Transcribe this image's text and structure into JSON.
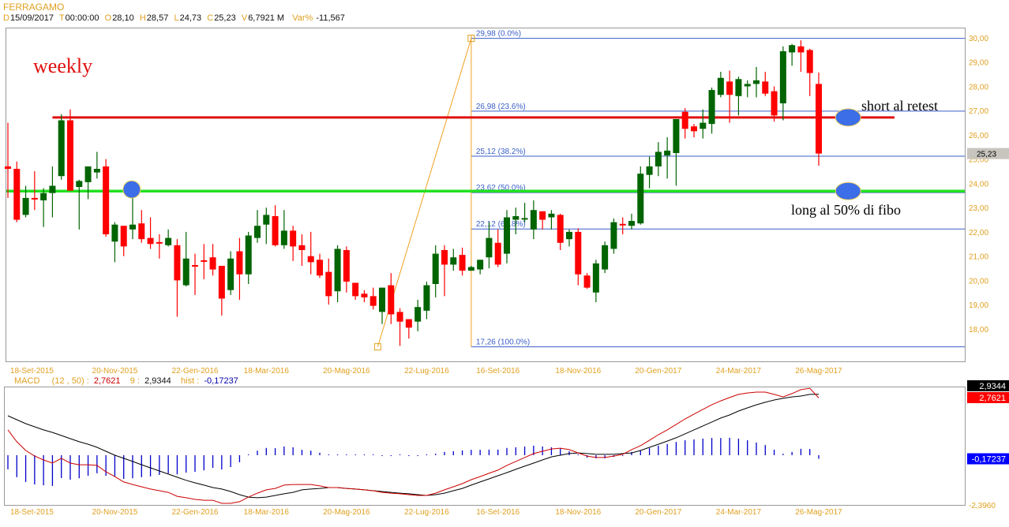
{
  "header": {
    "title": "FERRAGAMO",
    "fields": [
      {
        "label": "D",
        "value": "15/09/2017"
      },
      {
        "label": "T",
        "value": "00:00:00"
      },
      {
        "label": "O",
        "value": "28,10"
      },
      {
        "label": "H",
        "value": "28,57"
      },
      {
        "label": "L",
        "value": "24,73"
      },
      {
        "label": "C",
        "value": "25,23"
      },
      {
        "label": "V",
        "value": "6,7921 M"
      },
      {
        "label": "Var%",
        "value": "-11,567"
      }
    ]
  },
  "annotations": {
    "weekly": "weekly",
    "short": "short al retest",
    "long": "long al 50% di fibo"
  },
  "colors": {
    "up": "#006400",
    "down": "#ff0000",
    "axis": "#e0a020",
    "fib": "#3a5fc8",
    "resistance": "#e01010",
    "support": "#22e022",
    "marker": "#3c6ee8"
  },
  "chart_data": [
    {
      "type": "candlestick",
      "title": "FERRAGAMO weekly",
      "ylim": [
        17.0,
        30.4
      ],
      "yticks": [
        "30,00",
        "29,00",
        "28,00",
        "27,00",
        "26,00",
        "25,00",
        "24,00",
        "23,00",
        "22,00",
        "21,00",
        "20,00",
        "19,00",
        "18,00"
      ],
      "ytick_values": [
        30,
        29,
        28,
        27,
        26,
        25,
        24,
        23,
        22,
        21,
        20,
        19,
        18
      ],
      "last_price_label": "25,23",
      "last_price": 25.23,
      "xticks": [
        {
          "label": "18-Set-2015",
          "index": 2.7
        },
        {
          "label": "20-Nov-2015",
          "index": 12
        },
        {
          "label": "22-Gen-2016",
          "index": 21
        },
        {
          "label": "18-Mar-2016",
          "index": 29
        },
        {
          "label": "20-Mag-2016",
          "index": 38
        },
        {
          "label": "22-Lug-2016",
          "index": 47
        },
        {
          "label": "16-Set-2016",
          "index": 55
        },
        {
          "label": "18-Nov-2016",
          "index": 64
        },
        {
          "label": "20-Gen-2017",
          "index": 73
        },
        {
          "label": "24-Mar-2017",
          "index": 82
        },
        {
          "label": "26-Mag-2017",
          "index": 91
        }
      ],
      "ohlc": [
        [
          24.7,
          26.5,
          23.4,
          24.6
        ],
        [
          24.6,
          24.9,
          22.4,
          22.5
        ],
        [
          22.7,
          23.9,
          22.6,
          23.4
        ],
        [
          23.4,
          24.5,
          22.9,
          23.35
        ],
        [
          23.3,
          23.8,
          22.2,
          23.6
        ],
        [
          23.6,
          24.7,
          22.6,
          23.9
        ],
        [
          24.3,
          26.85,
          24.15,
          26.6
        ],
        [
          26.6,
          27.05,
          23.7,
          23.7
        ],
        [
          23.85,
          24.15,
          22.1,
          24.1
        ],
        [
          24.05,
          24.7,
          23.35,
          24.7
        ],
        [
          24.45,
          25.3,
          24.2,
          24.6
        ],
        [
          24.7,
          25.0,
          21.8,
          21.9
        ],
        [
          21.6,
          22.4,
          20.75,
          22.3
        ],
        [
          22.25,
          22.25,
          21.0,
          21.4
        ],
        [
          22.1,
          23.8,
          21.7,
          22.3
        ],
        [
          22.35,
          22.9,
          21.55,
          21.7
        ],
        [
          21.75,
          22.6,
          21.3,
          21.5
        ],
        [
          21.58,
          21.9,
          20.9,
          21.55
        ],
        [
          21.45,
          22.1,
          21.4,
          21.75
        ],
        [
          21.45,
          21.7,
          18.5,
          20.0
        ],
        [
          19.8,
          22.0,
          19.75,
          20.9
        ],
        [
          20.63,
          21.1,
          19.4,
          20.6
        ],
        [
          20.83,
          21.5,
          20.05,
          20.8
        ],
        [
          20.95,
          21.5,
          20.2,
          20.45
        ],
        [
          20.6,
          20.6,
          18.55,
          19.25
        ],
        [
          19.6,
          21.2,
          19.4,
          20.9
        ],
        [
          21.2,
          21.75,
          19.2,
          20.25
        ],
        [
          20.25,
          22.0,
          19.85,
          21.85
        ],
        [
          21.75,
          22.9,
          21.55,
          22.25
        ],
        [
          22.3,
          23.0,
          21.5,
          22.7
        ],
        [
          22.65,
          23.1,
          21.4,
          21.45
        ],
        [
          21.45,
          22.9,
          21.3,
          22.05
        ],
        [
          22.05,
          22.25,
          20.8,
          21.4
        ],
        [
          21.45,
          21.9,
          20.6,
          21.25
        ],
        [
          21.0,
          22.0,
          20.25,
          20.75
        ],
        [
          20.85,
          21.1,
          20.1,
          20.2
        ],
        [
          20.35,
          20.9,
          19.0,
          19.35
        ],
        [
          19.55,
          21.45,
          19.1,
          21.3
        ],
        [
          21.25,
          21.4,
          19.5,
          19.95
        ],
        [
          19.9,
          19.9,
          19.2,
          19.35
        ],
        [
          19.45,
          19.6,
          19.1,
          19.3
        ],
        [
          19.35,
          19.7,
          18.8,
          18.95
        ],
        [
          18.7,
          19.7,
          18.2,
          19.7
        ],
        [
          19.8,
          20.3,
          18.2,
          18.6
        ],
        [
          18.7,
          18.85,
          17.3,
          18.3
        ],
        [
          18.4,
          18.4,
          17.6,
          18.05
        ],
        [
          18.3,
          19.2,
          17.9,
          18.9
        ],
        [
          18.75,
          19.95,
          18.4,
          19.8
        ],
        [
          19.85,
          21.45,
          19.3,
          21.1
        ],
        [
          21.25,
          21.45,
          19.35,
          20.65
        ],
        [
          20.65,
          21.3,
          20.4,
          20.95
        ],
        [
          21.05,
          21.35,
          20.2,
          20.4
        ],
        [
          20.4,
          20.6,
          20.4,
          20.55
        ],
        [
          20.45,
          20.85,
          20.25,
          20.85
        ],
        [
          20.95,
          22.4,
          20.5,
          21.75
        ],
        [
          21.55,
          22.1,
          20.55,
          20.65
        ],
        [
          21.1,
          22.9,
          20.7,
          22.6
        ],
        [
          22.5,
          23.0,
          21.9,
          22.65
        ],
        [
          22.53,
          23.2,
          22.4,
          22.57
        ],
        [
          22.1,
          23.3,
          21.7,
          22.9
        ],
        [
          22.85,
          22.85,
          22.1,
          22.5
        ],
        [
          22.6,
          22.9,
          22.1,
          22.75
        ],
        [
          22.7,
          22.75,
          21.25,
          21.55
        ],
        [
          21.7,
          22.1,
          21.4,
          22.0
        ],
        [
          22.0,
          22.15,
          19.8,
          20.25
        ],
        [
          20.2,
          20.3,
          19.65,
          19.7
        ],
        [
          19.5,
          20.85,
          19.1,
          20.7
        ],
        [
          20.45,
          21.6,
          20.3,
          21.45
        ],
        [
          21.3,
          22.55,
          21.1,
          22.4
        ],
        [
          22.33,
          22.6,
          21.9,
          22.3
        ],
        [
          22.25,
          22.75,
          22.1,
          22.45
        ],
        [
          22.35,
          24.7,
          22.3,
          24.4
        ],
        [
          24.35,
          25.1,
          23.8,
          24.7
        ],
        [
          24.7,
          25.7,
          24.3,
          25.3
        ],
        [
          25.15,
          25.9,
          24.2,
          25.35
        ],
        [
          25.25,
          26.65,
          23.9,
          26.65
        ],
        [
          26.95,
          27.1,
          25.85,
          26.25
        ],
        [
          26.35,
          26.45,
          25.9,
          26.15
        ],
        [
          26.25,
          27.05,
          25.85,
          26.5
        ],
        [
          26.45,
          27.95,
          26.05,
          27.85
        ],
        [
          27.65,
          28.6,
          27.55,
          28.35
        ],
        [
          28.2,
          28.65,
          26.5,
          27.65
        ],
        [
          27.6,
          28.4,
          26.8,
          28.3
        ],
        [
          28.0,
          28.25,
          27.55,
          28.1
        ],
        [
          28.1,
          28.8,
          27.55,
          28.25
        ],
        [
          28.2,
          28.6,
          27.6,
          27.7
        ],
        [
          27.8,
          28.0,
          26.55,
          26.8
        ],
        [
          27.3,
          29.65,
          26.6,
          29.45
        ],
        [
          29.4,
          29.75,
          28.85,
          29.7
        ],
        [
          29.65,
          29.9,
          28.6,
          29.4
        ],
        [
          29.5,
          29.55,
          27.6,
          28.55
        ],
        [
          28.1,
          28.57,
          24.73,
          25.23
        ]
      ],
      "fibonacci": {
        "from": {
          "index": 41.5,
          "price": 17.26
        },
        "to": {
          "index": 52.0,
          "price": 29.98
        },
        "levels": [
          {
            "price": 29.98,
            "label": "29,98 (0.0%)"
          },
          {
            "price": 26.98,
            "label": "26,98 (23.6%)"
          },
          {
            "price": 25.12,
            "label": "25,12 (38.2%)"
          },
          {
            "price": 23.62,
            "label": "23,62 (50.0%)"
          },
          {
            "price": 22.12,
            "label": "22,12 (61.8%)"
          },
          {
            "price": 17.26,
            "label": "17,26 (100.0%)"
          }
        ]
      },
      "resistance_line": {
        "price": 26.72,
        "from_index": 5.0,
        "to_index": 99.5
      },
      "support_line": {
        "price": 23.68
      },
      "markers": [
        {
          "index": 13.9,
          "price": 23.75
        },
        {
          "index": 94.3,
          "price": 26.72
        },
        {
          "index": 94.3,
          "price": 23.68
        }
      ]
    },
    {
      "type": "line",
      "title": "MACD",
      "legend": {
        "name": "MACD",
        "params": "(12 , 50) :",
        "macd_value": "2,7621",
        "signal_label": "9 :",
        "signal_value": "2,9344",
        "hist_label": "hist :",
        "hist_value": "-0,17237"
      },
      "ylim": [
        -2.396,
        2.9344
      ],
      "bottom_label": "-2,3960",
      "macd": [
        1.22,
        0.65,
        0.23,
        -0.04,
        -0.23,
        -0.38,
        -0.15,
        -0.38,
        -0.46,
        -0.46,
        -0.49,
        -0.8,
        -1.03,
        -1.29,
        -1.41,
        -1.52,
        -1.63,
        -1.71,
        -1.79,
        -1.98,
        -2.05,
        -2.13,
        -2.17,
        -2.17,
        -2.32,
        -2.32,
        -2.24,
        -2.02,
        -1.83,
        -1.67,
        -1.6,
        -1.44,
        -1.41,
        -1.41,
        -1.41,
        -1.48,
        -1.56,
        -1.56,
        -1.6,
        -1.63,
        -1.67,
        -1.71,
        -1.79,
        -1.83,
        -1.86,
        -1.9,
        -1.94,
        -1.94,
        -1.83,
        -1.67,
        -1.52,
        -1.37,
        -1.18,
        -1.03,
        -0.87,
        -0.72,
        -0.49,
        -0.3,
        -0.11,
        0.08,
        0.19,
        0.3,
        0.34,
        0.27,
        0.11,
        -0.04,
        -0.11,
        -0.11,
        -0.04,
        0.04,
        0.27,
        0.46,
        0.72,
        0.99,
        1.22,
        1.48,
        1.75,
        1.98,
        2.21,
        2.43,
        2.62,
        2.78,
        2.93,
        3.0,
        3.04,
        3.04,
        2.93,
        2.81,
        2.97,
        3.16,
        3.23,
        2.7621
      ],
      "signal": [
        1.9,
        1.71,
        1.52,
        1.37,
        1.22,
        1.1,
        0.95,
        0.8,
        0.65,
        0.53,
        0.38,
        0.19,
        0.0,
        -0.15,
        -0.3,
        -0.46,
        -0.61,
        -0.76,
        -0.91,
        -1.06,
        -1.21,
        -1.33,
        -1.44,
        -1.56,
        -1.63,
        -1.75,
        -1.9,
        -2.02,
        -2.05,
        -2.02,
        -1.94,
        -1.86,
        -1.79,
        -1.67,
        -1.63,
        -1.6,
        -1.56,
        -1.56,
        -1.6,
        -1.63,
        -1.67,
        -1.71,
        -1.75,
        -1.79,
        -1.83,
        -1.86,
        -1.9,
        -1.94,
        -1.9,
        -1.83,
        -1.71,
        -1.6,
        -1.44,
        -1.29,
        -1.14,
        -0.99,
        -0.84,
        -0.68,
        -0.53,
        -0.38,
        -0.23,
        -0.08,
        0.0,
        0.08,
        0.11,
        0.08,
        0.04,
        0.04,
        0.04,
        0.08,
        0.11,
        0.23,
        0.38,
        0.53,
        0.68,
        0.84,
        1.03,
        1.22,
        1.41,
        1.6,
        1.79,
        1.94,
        2.13,
        2.28,
        2.43,
        2.55,
        2.66,
        2.74,
        2.81,
        2.85,
        2.93,
        2.9344
      ],
      "colors": {
        "macd": "#cc0000",
        "signal": "#000000",
        "hist": "#0000cc"
      }
    }
  ]
}
